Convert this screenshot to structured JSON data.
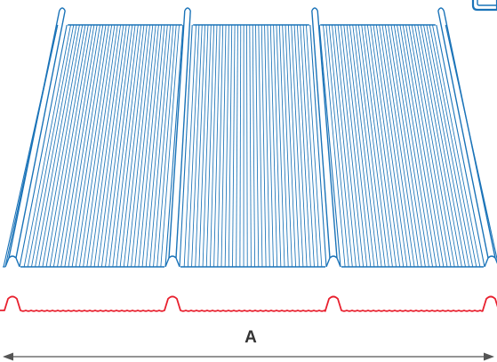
{
  "dimension": {
    "label": "A"
  },
  "panel": {
    "ribs": 4,
    "pans": 3,
    "corrugations_per_pan": 38
  },
  "colors": {
    "panel_stroke": "#1a73b8",
    "profile_stroke": "#e8202e",
    "dimension_stroke": "#555555",
    "dimension_label": "#333333"
  },
  "icons": {
    "corner": "logo-badge-icon"
  }
}
